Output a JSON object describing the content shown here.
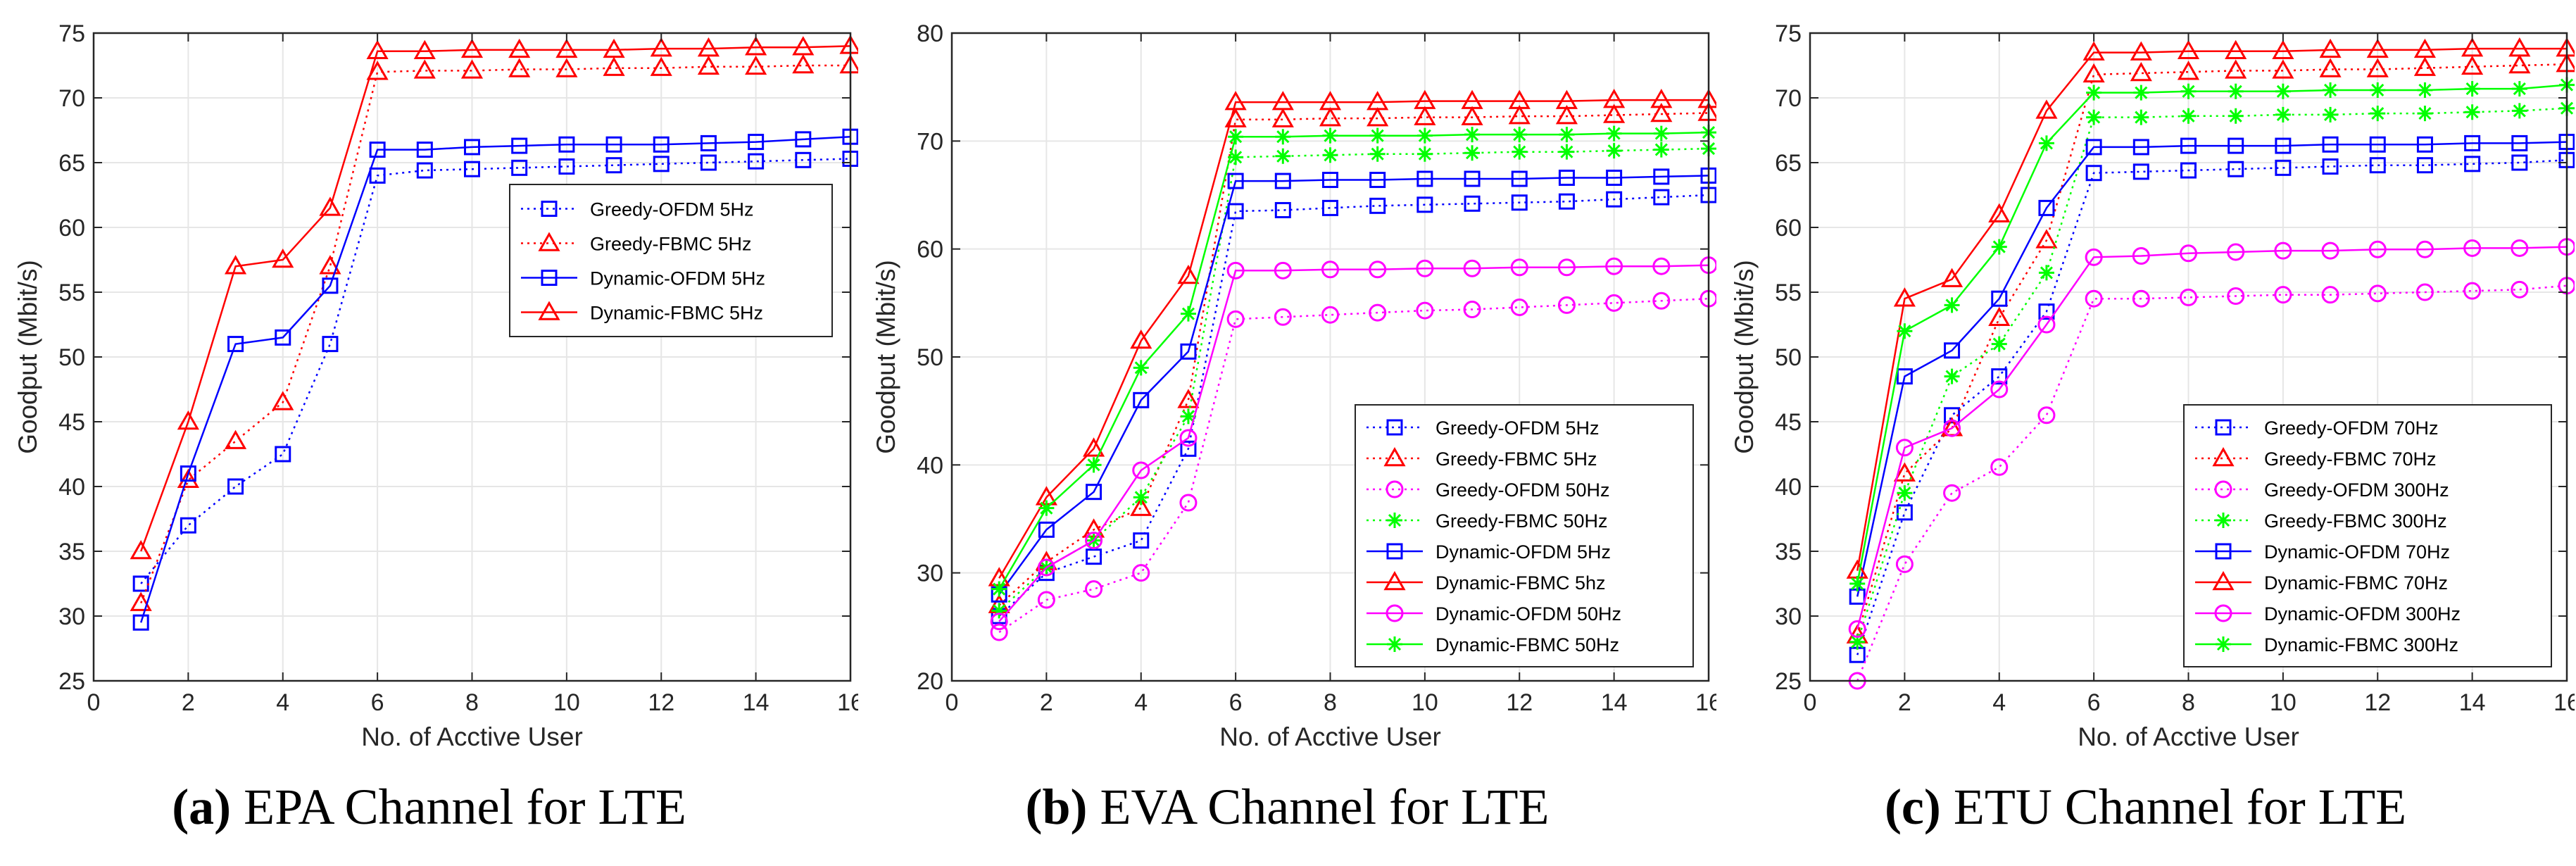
{
  "colors": {
    "blue": "#0000ff",
    "red": "#ff0000",
    "magenta": "#ff00ff",
    "green": "#00ff00",
    "grid": "#e6e6e6",
    "axis": "#262626"
  },
  "chart_data": [
    {
      "type": "line",
      "caption_tag": "(a)",
      "caption_text": " EPA Channel for LTE",
      "xlabel": "No. of Acctive User",
      "ylabel": "Goodput (Mbit/s)",
      "xlim": [
        0,
        16
      ],
      "ylim": [
        25,
        75
      ],
      "xticks": [
        0,
        2,
        4,
        6,
        8,
        10,
        12,
        14,
        16
      ],
      "yticks": [
        25,
        30,
        35,
        40,
        45,
        50,
        55,
        60,
        65,
        70,
        75
      ],
      "grid": true,
      "legend_position": "right-middle",
      "x": [
        1,
        2,
        3,
        4,
        5,
        6,
        7,
        8,
        9,
        10,
        11,
        12,
        13,
        14,
        15,
        16
      ],
      "series": [
        {
          "name": "Greedy-OFDM 5Hz",
          "color": "blue",
          "dash": "dotted",
          "marker": "square",
          "values": [
            32.5,
            37,
            40,
            42.5,
            51,
            64,
            64.4,
            64.5,
            64.6,
            64.7,
            64.8,
            64.9,
            65,
            65.1,
            65.2,
            65.3
          ]
        },
        {
          "name": "Greedy-FBMC 5Hz",
          "color": "red",
          "dash": "dotted",
          "marker": "triangle",
          "values": [
            31,
            40.5,
            43.5,
            46.5,
            57,
            72,
            72.1,
            72.1,
            72.2,
            72.2,
            72.3,
            72.3,
            72.4,
            72.4,
            72.5,
            72.5
          ]
        },
        {
          "name": "Dynamic-OFDM 5Hz",
          "color": "blue",
          "dash": "solid",
          "marker": "square",
          "values": [
            29.5,
            41,
            51,
            51.5,
            55.5,
            66,
            66,
            66.2,
            66.3,
            66.4,
            66.4,
            66.4,
            66.5,
            66.6,
            66.8,
            67
          ]
        },
        {
          "name": "Dynamic-FBMC 5Hz",
          "color": "red",
          "dash": "solid",
          "marker": "triangle",
          "values": [
            35,
            45,
            57,
            57.5,
            61.5,
            73.6,
            73.6,
            73.7,
            73.7,
            73.7,
            73.7,
            73.8,
            73.8,
            73.9,
            73.9,
            74
          ]
        }
      ]
    },
    {
      "type": "line",
      "caption_tag": "(b)",
      "caption_text": " EVA Channel for LTE",
      "xlabel": "No. of Acctive User",
      "ylabel": "Goodput (Mbit/s)",
      "xlim": [
        0,
        16
      ],
      "ylim": [
        20,
        80
      ],
      "xticks": [
        0,
        2,
        4,
        6,
        8,
        10,
        12,
        14,
        16
      ],
      "yticks": [
        20,
        30,
        40,
        50,
        60,
        70,
        80
      ],
      "grid": true,
      "legend_position": "bottom-right",
      "x": [
        1,
        2,
        3,
        4,
        5,
        6,
        7,
        8,
        9,
        10,
        11,
        12,
        13,
        14,
        15,
        16
      ],
      "series": [
        {
          "name": "Greedy-OFDM 5Hz",
          "color": "blue",
          "dash": "dotted",
          "marker": "square",
          "values": [
            26,
            30,
            31.5,
            33,
            41.5,
            63.5,
            63.6,
            63.8,
            64,
            64.1,
            64.2,
            64.3,
            64.4,
            64.6,
            64.8,
            65
          ]
        },
        {
          "name": "Greedy-FBMC 5Hz",
          "color": "red",
          "dash": "dotted",
          "marker": "triangle",
          "values": [
            27,
            31,
            34,
            36,
            46,
            72,
            72,
            72.1,
            72.1,
            72.2,
            72.2,
            72.3,
            72.3,
            72.4,
            72.5,
            72.6
          ]
        },
        {
          "name": "Greedy-OFDM 50Hz",
          "color": "magenta",
          "dash": "dotted",
          "marker": "circle",
          "values": [
            24.5,
            27.5,
            28.5,
            30,
            36.5,
            53.5,
            53.7,
            53.9,
            54.1,
            54.3,
            54.4,
            54.6,
            54.8,
            55,
            55.2,
            55.4
          ]
        },
        {
          "name": "Greedy-FBMC 50Hz",
          "color": "green",
          "dash": "dotted",
          "marker": "star",
          "values": [
            26.5,
            30.5,
            33,
            37,
            44.5,
            68.5,
            68.6,
            68.7,
            68.8,
            68.8,
            68.9,
            69,
            69,
            69.1,
            69.2,
            69.3
          ]
        },
        {
          "name": "Dynamic-OFDM 5Hz",
          "color": "blue",
          "dash": "solid",
          "marker": "square",
          "values": [
            28,
            34,
            37.5,
            46,
            50.5,
            66.3,
            66.3,
            66.4,
            66.4,
            66.5,
            66.5,
            66.5,
            66.6,
            66.6,
            66.7,
            66.8
          ]
        },
        {
          "name": "Dynamic-FBMC 5hz",
          "color": "red",
          "dash": "solid",
          "marker": "triangle",
          "values": [
            29.5,
            37,
            41.5,
            51.5,
            57.5,
            73.6,
            73.6,
            73.6,
            73.6,
            73.7,
            73.7,
            73.7,
            73.7,
            73.8,
            73.8,
            73.8
          ]
        },
        {
          "name": "Dynamic-OFDM 50Hz",
          "color": "magenta",
          "dash": "solid",
          "marker": "circle",
          "values": [
            25.5,
            30.5,
            33,
            39.5,
            42.5,
            58,
            58,
            58.1,
            58.1,
            58.2,
            58.2,
            58.3,
            58.3,
            58.4,
            58.4,
            58.5
          ]
        },
        {
          "name": "Dynamic-FBMC 50Hz",
          "color": "green",
          "dash": "solid",
          "marker": "star",
          "values": [
            28.5,
            36,
            40,
            49,
            54,
            70.4,
            70.4,
            70.5,
            70.5,
            70.5,
            70.6,
            70.6,
            70.6,
            70.7,
            70.7,
            70.8
          ]
        }
      ]
    },
    {
      "type": "line",
      "caption_tag": "(c)",
      "caption_text": " ETU Channel for LTE",
      "xlabel": "No. of Acctive User",
      "ylabel": "Goodput (Mbit/s)",
      "xlim": [
        0,
        16
      ],
      "ylim": [
        25,
        75
      ],
      "xticks": [
        0,
        2,
        4,
        6,
        8,
        10,
        12,
        14,
        16
      ],
      "yticks": [
        25,
        30,
        35,
        40,
        45,
        50,
        55,
        60,
        65,
        70,
        75
      ],
      "grid": true,
      "legend_position": "bottom-right",
      "x": [
        1,
        2,
        3,
        4,
        5,
        6,
        7,
        8,
        9,
        10,
        11,
        12,
        13,
        14,
        15,
        16
      ],
      "series": [
        {
          "name": "Greedy-OFDM 70Hz",
          "color": "blue",
          "dash": "dotted",
          "marker": "square",
          "values": [
            27,
            38,
            45.5,
            48.5,
            53.5,
            64.2,
            64.3,
            64.4,
            64.5,
            64.6,
            64.7,
            64.8,
            64.8,
            64.9,
            65,
            65.2
          ]
        },
        {
          "name": "Greedy-FBMC 70Hz",
          "color": "red",
          "dash": "dotted",
          "marker": "triangle",
          "values": [
            28.5,
            41,
            44.5,
            53,
            59,
            71.8,
            71.9,
            72,
            72.1,
            72.1,
            72.2,
            72.2,
            72.3,
            72.4,
            72.5,
            72.6
          ]
        },
        {
          "name": "Greedy-OFDM 300Hz",
          "color": "magenta",
          "dash": "dotted",
          "marker": "circle",
          "values": [
            25,
            34,
            39.5,
            41.5,
            45.5,
            54.5,
            54.5,
            54.6,
            54.7,
            54.8,
            54.8,
            54.9,
            55,
            55.1,
            55.2,
            55.5
          ]
        },
        {
          "name": "Greedy-FBMC 300Hz",
          "color": "green",
          "dash": "dotted",
          "marker": "star",
          "values": [
            28,
            39.5,
            48.5,
            51,
            56.5,
            68.5,
            68.5,
            68.6,
            68.6,
            68.7,
            68.7,
            68.8,
            68.8,
            68.9,
            69,
            69.2
          ]
        },
        {
          "name": "Dynamic-OFDM 70Hz",
          "color": "blue",
          "dash": "solid",
          "marker": "square",
          "values": [
            31.5,
            48.5,
            50.5,
            54.5,
            61.5,
            66.2,
            66.2,
            66.3,
            66.3,
            66.3,
            66.4,
            66.4,
            66.4,
            66.5,
            66.5,
            66.6
          ]
        },
        {
          "name": "Dynamic-FBMC 70Hz",
          "color": "red",
          "dash": "solid",
          "marker": "triangle",
          "values": [
            33.5,
            54.5,
            56,
            61,
            69,
            73.5,
            73.5,
            73.6,
            73.6,
            73.6,
            73.7,
            73.7,
            73.7,
            73.8,
            73.8,
            73.8
          ]
        },
        {
          "name": "Dynamic-OFDM 300Hz",
          "color": "magenta",
          "dash": "solid",
          "marker": "circle",
          "values": [
            29,
            43,
            44.5,
            47.5,
            52.5,
            57.7,
            57.8,
            58,
            58.1,
            58.2,
            58.2,
            58.3,
            58.3,
            58.4,
            58.4,
            58.5
          ]
        },
        {
          "name": "Dynamic-FBMC 300Hz",
          "color": "green",
          "dash": "solid",
          "marker": "star",
          "values": [
            32.5,
            52,
            54,
            58.5,
            66.5,
            70.4,
            70.4,
            70.5,
            70.5,
            70.5,
            70.6,
            70.6,
            70.6,
            70.7,
            70.7,
            71
          ]
        }
      ]
    }
  ]
}
